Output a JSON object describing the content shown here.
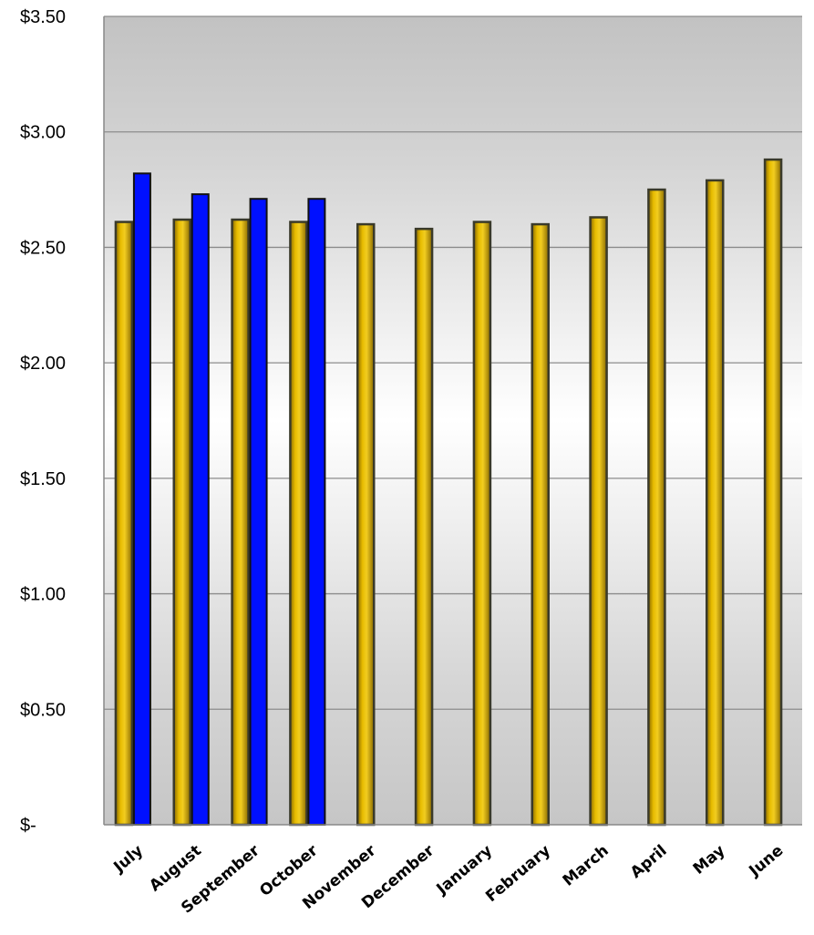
{
  "chart_data": {
    "type": "bar",
    "title": "",
    "xlabel": "",
    "ylabel": "",
    "ylim": [
      0,
      3.5
    ],
    "y_ticks": [
      "$-",
      "$0.50",
      "$1.00",
      "$1.50",
      "$2.00",
      "$2.50",
      "$3.00",
      "$3.50"
    ],
    "y_tick_values": [
      0,
      0.5,
      1.0,
      1.5,
      2.0,
      2.5,
      3.0,
      3.5
    ],
    "grid": true,
    "legend": "none",
    "categories": [
      "July",
      "August",
      "September",
      "October",
      "November",
      "December",
      "January",
      "February",
      "March",
      "April",
      "May",
      "June"
    ],
    "series": [
      {
        "color": "#e0b400",
        "values": [
          2.61,
          2.62,
          2.62,
          2.61,
          2.6,
          2.58,
          2.61,
          2.6,
          2.63,
          2.75,
          2.79,
          2.88
        ]
      },
      {
        "color": "#0010ff",
        "values": [
          2.82,
          2.73,
          2.71,
          2.71,
          null,
          null,
          null,
          null,
          null,
          null,
          null,
          null
        ]
      }
    ]
  }
}
